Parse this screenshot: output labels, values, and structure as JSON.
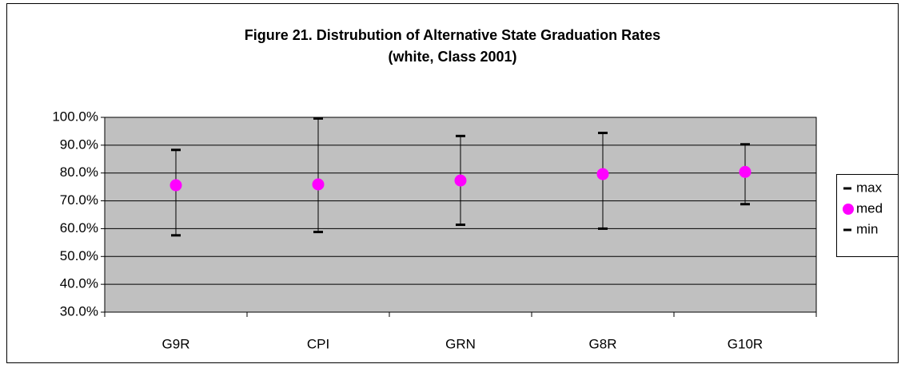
{
  "chart_data": {
    "type": "stock",
    "title": "Figure 21. Distrubution of Alternative State Graduation Rates",
    "subtitle": "(white, Class 2001)",
    "categories": [
      "G9R",
      "CPI",
      "GRN",
      "G8R",
      "G10R"
    ],
    "series": [
      {
        "name": "max",
        "color": "#000000",
        "values": [
          88.3,
          99.6,
          93.3,
          94.4,
          90.3
        ]
      },
      {
        "name": "med",
        "color": "#ff00ff",
        "values": [
          75.6,
          75.9,
          77.3,
          79.6,
          80.4
        ]
      },
      {
        "name": "min",
        "color": "#000000",
        "values": [
          57.6,
          58.8,
          61.4,
          60.0,
          68.8
        ]
      }
    ],
    "ylim": [
      30,
      100
    ],
    "yticks": [
      {
        "value": 30,
        "label": "30.0%"
      },
      {
        "value": 40,
        "label": "40.0%"
      },
      {
        "value": 50,
        "label": "50.0%"
      },
      {
        "value": 60,
        "label": "60.0%"
      },
      {
        "value": 70,
        "label": "70.0%"
      },
      {
        "value": 80,
        "label": "80.0%"
      },
      {
        "value": 90,
        "label": "90.0%"
      },
      {
        "value": 100,
        "label": "100.0%"
      }
    ],
    "grid": true,
    "plot_background": "#c0c0c0",
    "legend": "right"
  }
}
